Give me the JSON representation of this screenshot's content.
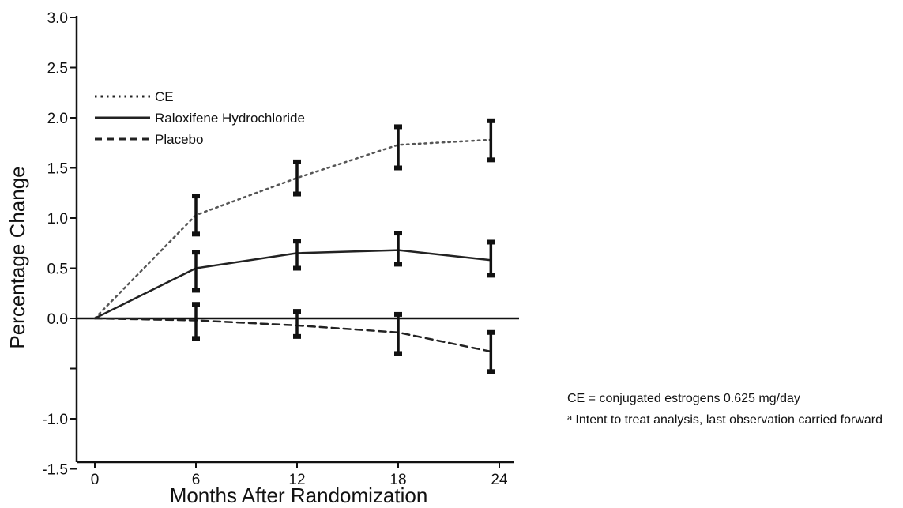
{
  "chart_data": {
    "type": "line",
    "xlabel": "Months After Randomization",
    "ylabel": "Percentage Change",
    "xlim": [
      0,
      24
    ],
    "ylim": [
      -1.5,
      3.0
    ],
    "xticks": [
      0,
      6,
      12,
      18,
      24
    ],
    "yticks": [
      {
        "value": -1.5,
        "label": "-1.5"
      },
      {
        "value": -1.0,
        "label": "-1.0"
      },
      {
        "value": -0.5,
        "label": ""
      },
      {
        "value": 0.0,
        "label": "0.0"
      },
      {
        "value": 0.5,
        "label": "0.5"
      },
      {
        "value": 1.0,
        "label": "1.0"
      },
      {
        "value": 1.5,
        "label": "1.5"
      },
      {
        "value": 2.0,
        "label": "2.0"
      },
      {
        "value": 2.5,
        "label": "2.5"
      },
      {
        "value": 3.0,
        "label": "3.0"
      }
    ],
    "grid": false,
    "legend_position": "top-left",
    "series": [
      {
        "name": "CE",
        "style": "dotted",
        "color": "#555555",
        "x": [
          0,
          6,
          12,
          18,
          23.5
        ],
        "y": [
          0,
          1.03,
          1.4,
          1.73,
          1.78
        ],
        "err_low": [
          null,
          0.84,
          1.24,
          1.5,
          1.58
        ],
        "err_high": [
          null,
          1.22,
          1.56,
          1.91,
          1.97
        ]
      },
      {
        "name": "Raloxifene Hydrochloride",
        "style": "solid",
        "color": "#222222",
        "x": [
          0,
          6,
          12,
          18,
          23.5
        ],
        "y": [
          0,
          0.5,
          0.65,
          0.68,
          0.58
        ],
        "err_low": [
          null,
          0.28,
          0.5,
          0.54,
          0.43
        ],
        "err_high": [
          null,
          0.66,
          0.77,
          0.85,
          0.76
        ]
      },
      {
        "name": "Placebo",
        "style": "dashed",
        "color": "#222222",
        "x": [
          0,
          6,
          12,
          18,
          23.5
        ],
        "y": [
          0,
          -0.02,
          -0.07,
          -0.14,
          -0.33
        ],
        "err_low": [
          null,
          -0.2,
          -0.18,
          -0.35,
          -0.53
        ],
        "err_high": [
          null,
          0.14,
          0.07,
          0.04,
          -0.14
        ]
      }
    ],
    "annotations": [
      "CE = conjugated estrogens 0.625 mg/day",
      "ᵃ Intent to treat analysis, last observation carried forward"
    ]
  }
}
